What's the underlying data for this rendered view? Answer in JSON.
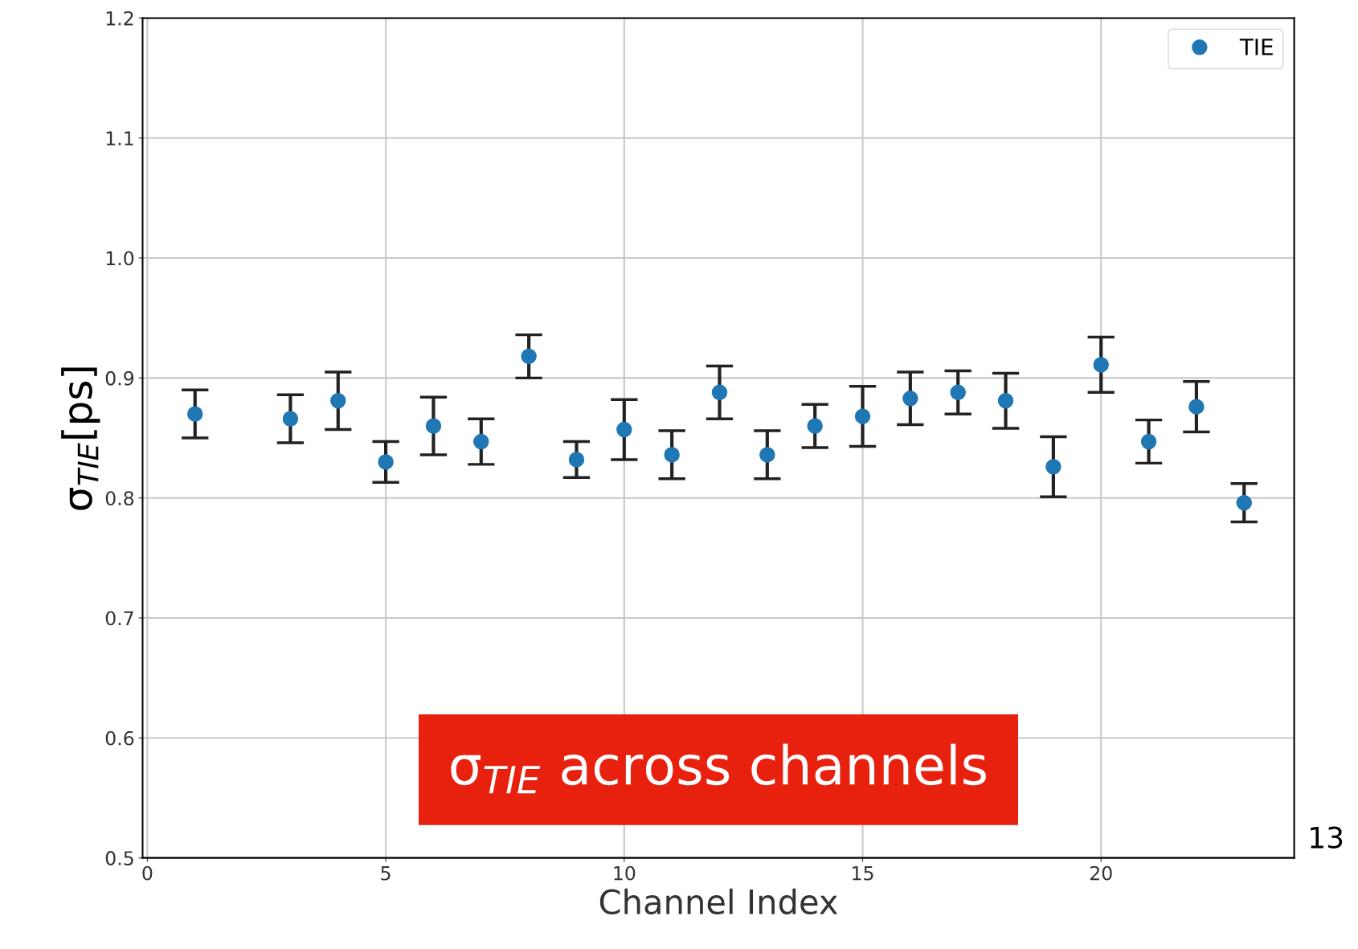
{
  "chart_data": {
    "type": "scatter",
    "xlabel": "Channel Index",
    "ylabel": "σ$_{TIE}$[ps]",
    "x": [
      1,
      3,
      4,
      5,
      6,
      7,
      8,
      9,
      10,
      11,
      12,
      13,
      14,
      15,
      16,
      17,
      18,
      19,
      20,
      21,
      22,
      23
    ],
    "series": [
      {
        "name": "TIE",
        "color": "#1f77b4",
        "values": [
          0.87,
          0.866,
          0.881,
          0.83,
          0.86,
          0.847,
          0.918,
          0.832,
          0.857,
          0.836,
          0.888,
          0.836,
          0.86,
          0.868,
          0.883,
          0.888,
          0.881,
          0.826,
          0.911,
          0.847,
          0.876,
          0.796
        ],
        "errors": [
          0.02,
          0.02,
          0.024,
          0.017,
          0.024,
          0.019,
          0.018,
          0.015,
          0.025,
          0.02,
          0.022,
          0.02,
          0.018,
          0.025,
          0.022,
          0.018,
          0.023,
          0.025,
          0.023,
          0.018,
          0.021,
          0.016
        ]
      }
    ],
    "xlim": [
      -0.1,
      24.05
    ],
    "ylim": [
      0.5,
      1.2
    ],
    "xticks": [
      0,
      5,
      10,
      15,
      20
    ],
    "yticks": [
      0.5,
      0.6,
      0.7,
      0.8,
      0.9,
      {
        "value": 1.0,
        "label": "1.0"
      },
      1.1,
      1.2
    ],
    "grid": true,
    "legend": "top right",
    "marker": "circle",
    "annotations": [
      "σ$_{TIE}$ across channels",
      "13"
    ]
  }
}
